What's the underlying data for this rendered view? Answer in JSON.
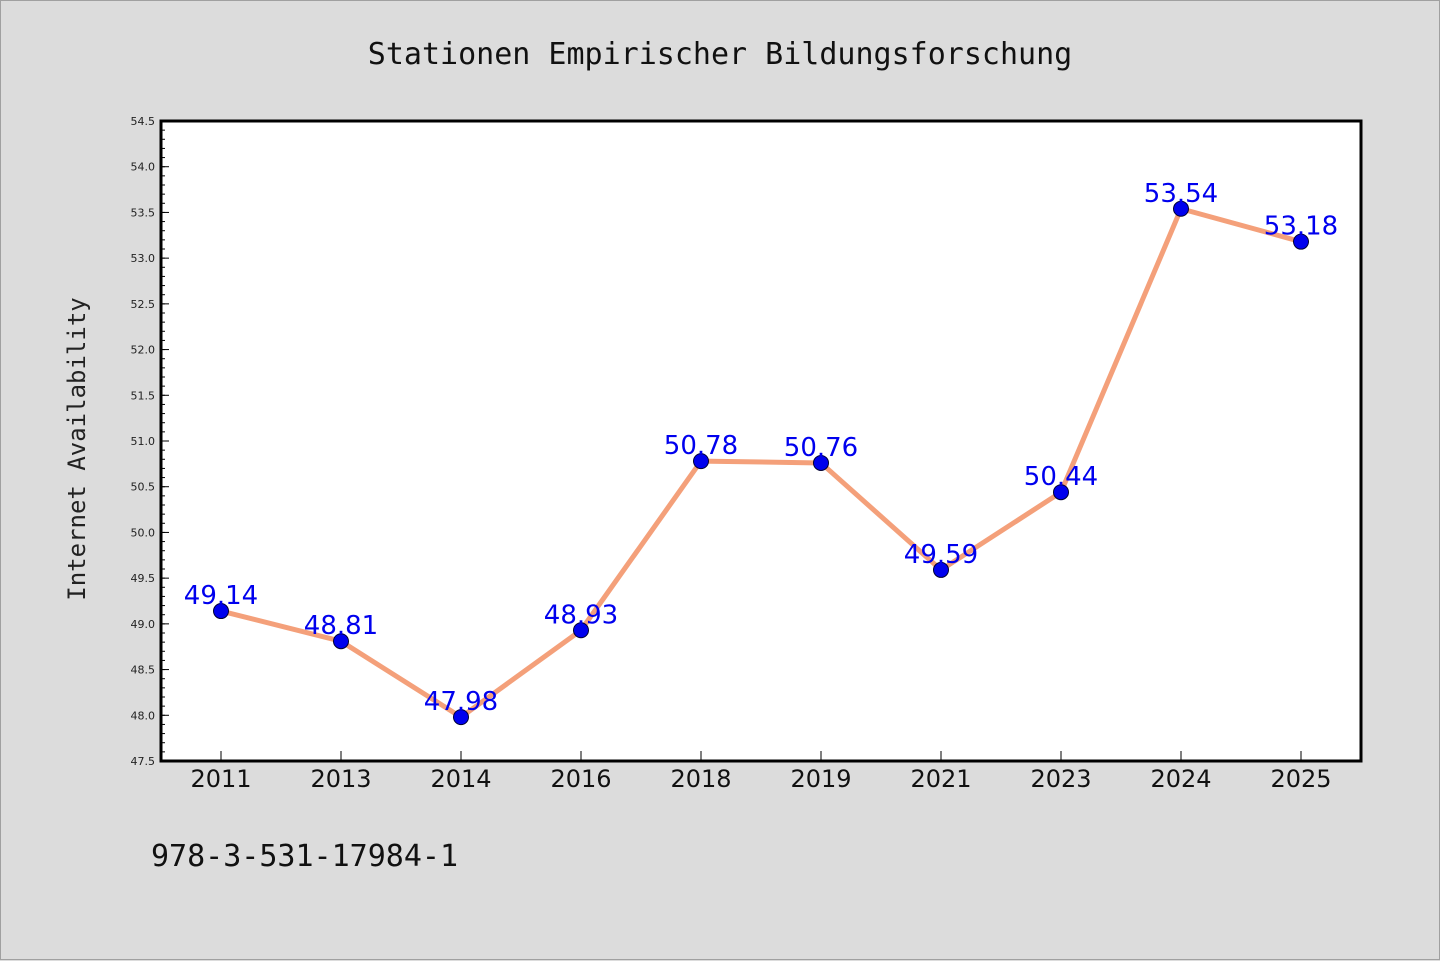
{
  "chart_data": {
    "type": "line",
    "title": "Stationen Empirischer Bildungsforschung",
    "xlabel": "",
    "ylabel": "Internet Availability",
    "categories": [
      "2011",
      "2013",
      "2014",
      "2016",
      "2018",
      "2019",
      "2021",
      "2023",
      "2024",
      "2025"
    ],
    "series": [
      {
        "values": [
          49.14,
          48.81,
          47.98,
          48.93,
          50.78,
          50.76,
          49.59,
          50.44,
          53.54,
          53.18
        ],
        "data_labels": [
          "49.14",
          "48.81",
          "47.98",
          "48.93",
          "50.78",
          "50.76",
          "49.59",
          "50.44",
          "53.54",
          "53.18"
        ],
        "line_color": "#f4a07a",
        "marker_color": "#0000ee"
      }
    ],
    "ylim": [
      47.5,
      54.5
    ],
    "yticks": [
      "47.5",
      "48.0",
      "48.5",
      "49.0",
      "49.5",
      "50.0",
      "50.5",
      "51.0",
      "51.5",
      "52.0",
      "52.5",
      "53.0",
      "53.5",
      "54.0",
      "54.5"
    ],
    "grid": false,
    "legend": "none"
  },
  "footer": {
    "isbn": "978-3-531-17984-1"
  },
  "colors": {
    "background": "#dcdcdc",
    "plot_background": "#ffffff",
    "line": "#f4a07a",
    "marker": "#0000ee",
    "data_label": "#0000ee"
  }
}
